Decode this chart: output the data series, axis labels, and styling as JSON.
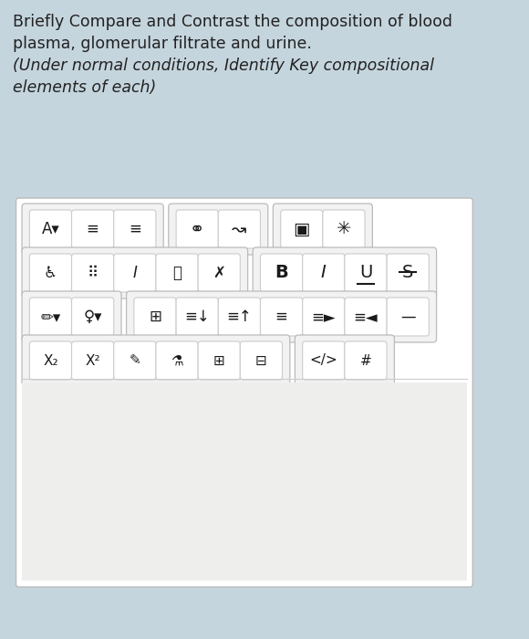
{
  "bg_color": "#c5d5de",
  "text_line1": "Briefly Compare and Contrast the composition of blood",
  "text_line2": "plasma, glomerular filtrate and urine.",
  "text_line3": "(Under normal conditions, Identify Key compositional",
  "text_line4": "elements of each)",
  "text_color": "#222222",
  "text_fontsize": 12.5,
  "toolbar_bg": "#ffffff",
  "toolbar_border": "#bbbbbb",
  "button_bg": "#ffffff",
  "button_border": "#cccccc",
  "group_bg": "#f2f2f2",
  "group_border": "#bbbbbb",
  "content_bg": "#f0efef"
}
